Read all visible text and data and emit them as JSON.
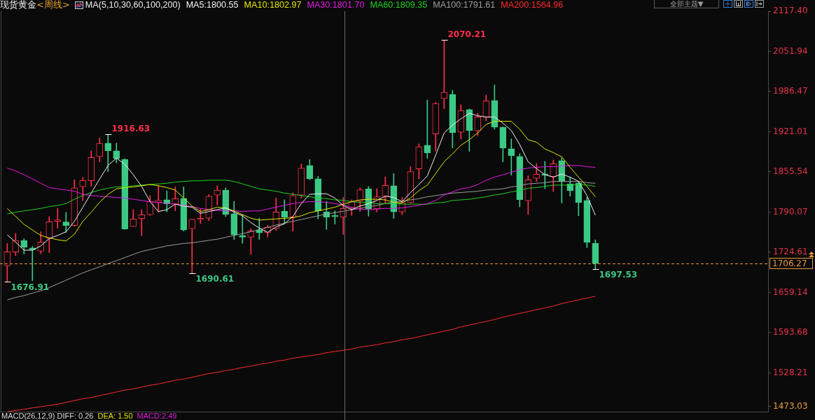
{
  "chart_data": {
    "type": "candlestick",
    "title": "现货黄金",
    "subtitle": "<周线>",
    "legend_title": "MA(5,10,30,60,100,200)",
    "legend": "top",
    "tick_labels": "y",
    "categories": [
      null,
      null,
      null,
      null,
      null,
      null,
      null,
      null,
      null,
      null,
      null,
      null,
      null,
      null,
      null,
      null,
      null,
      null,
      null,
      null,
      null,
      null,
      null,
      null,
      null,
      null,
      null,
      null,
      null,
      null,
      null,
      null,
      null,
      null,
      null,
      null,
      null,
      null,
      null,
      null,
      null,
      null,
      null,
      null,
      null,
      null,
      null,
      null,
      null,
      null,
      null,
      null,
      null,
      null,
      null,
      null,
      null,
      null,
      null,
      null,
      null,
      null,
      null,
      null,
      null,
      null,
      null,
      null,
      null,
      null,
      null
    ],
    "ohlc": [
      [
        1702.6,
        1739.1,
        1676.91,
        1725.4
      ],
      [
        1725.0,
        1755.4,
        1719.3,
        1744.0
      ],
      [
        1744.0,
        1746.7,
        1722.0,
        1732.6
      ],
      [
        1731.5,
        1734.1,
        1678.3,
        1728.8
      ],
      [
        1726.5,
        1758.1,
        1722.0,
        1741.4
      ],
      [
        1747.8,
        1782.7,
        1723.9,
        1774.4
      ],
      [
        1775.2,
        1796.0,
        1763.8,
        1776.3
      ],
      [
        1774.0,
        1789.6,
        1756.9,
        1768.3
      ],
      [
        1768.3,
        1842.7,
        1766.8,
        1829.5
      ],
      [
        1831.4,
        1846.5,
        1808.6,
        1841.6
      ],
      [
        1841.2,
        1889.8,
        1832.1,
        1879.2
      ],
      [
        1880.3,
        1910.7,
        1872.0,
        1902.0
      ],
      [
        1902.4,
        1916.63,
        1856.0,
        1890.2
      ],
      [
        1889.8,
        1902.4,
        1870.1,
        1876.9
      ],
      [
        1875.8,
        1876.9,
        1761.9,
        1762.6
      ],
      [
        1766.4,
        1794.1,
        1766.4,
        1778.9
      ],
      [
        1779.7,
        1794.1,
        1751.6,
        1785.8
      ],
      [
        1785.8,
        1816.9,
        1784.6,
        1807.4
      ],
      [
        1805.5,
        1833.2,
        1790.3,
        1809.3
      ],
      [
        1810.1,
        1824.5,
        1790.3,
        1803.6
      ],
      [
        1802.9,
        1831.3,
        1792.2,
        1812.0
      ],
      [
        1812.4,
        1831.3,
        1759.2,
        1760.7
      ],
      [
        1763.0,
        1778.9,
        1690.61,
        1778.2
      ],
      [
        1777.8,
        1795.3,
        1771.4,
        1778.9
      ],
      [
        1780.1,
        1818.8,
        1776.3,
        1815.8
      ],
      [
        1817.7,
        1832.9,
        1801.7,
        1825.7
      ],
      [
        1825.7,
        1829.5,
        1782.7,
        1786.5
      ],
      [
        1787.3,
        1807.4,
        1745.5,
        1753.1
      ],
      [
        1752.0,
        1785.8,
        1739.1,
        1749.3
      ],
      [
        1749.3,
        1763.0,
        1721.2,
        1759.6
      ],
      [
        1760.7,
        1780.1,
        1745.5,
        1756.2
      ],
      [
        1756.2,
        1768.3,
        1749.7,
        1765.3
      ],
      [
        1763.0,
        1813.1,
        1760.0,
        1790.3
      ],
      [
        1791.5,
        1810.1,
        1771.4,
        1782.0
      ],
      [
        1782.0,
        1821.5,
        1759.2,
        1816.9
      ],
      [
        1817.7,
        1868.2,
        1813.1,
        1861.7
      ],
      [
        1865.9,
        1875.8,
        1842.7,
        1844.6
      ],
      [
        1844.3,
        1848.4,
        1778.9,
        1792.2
      ],
      [
        1790.3,
        1807.4,
        1761.9,
        1782.0
      ],
      [
        1783.0,
        1792.2,
        1770.6,
        1782.5
      ],
      [
        1782.0,
        1813.9,
        1753.5,
        1796.0
      ],
      [
        1797.2,
        1810.1,
        1784.6,
        1806.7
      ],
      [
        1807.4,
        1829.5,
        1791.1,
        1826.4
      ],
      [
        1827.9,
        1831.7,
        1783.5,
        1795.3
      ],
      [
        1795.3,
        1828.3,
        1790.3,
        1815.0
      ],
      [
        1815.8,
        1847.3,
        1804.8,
        1833.6
      ],
      [
        1832.9,
        1853.0,
        1779.7,
        1790.3
      ],
      [
        1790.3,
        1814.3,
        1785.8,
        1805.5
      ],
      [
        1805.5,
        1864.4,
        1804.8,
        1856.0
      ],
      [
        1860.6,
        1901.2,
        1844.2,
        1896.3
      ],
      [
        1898.9,
        1972.6,
        1877.6,
        1886.4
      ],
      [
        1917.5,
        1968.8,
        1889.8,
        1966.9
      ],
      [
        1974.9,
        2070.21,
        1958.2,
        1985.1
      ],
      [
        1981.7,
        1988.5,
        1894.7,
        1919.4
      ],
      [
        1920.2,
        1965.0,
        1909.2,
        1955.5
      ],
      [
        1957.0,
        1958.2,
        1889.1,
        1923.2
      ],
      [
        1922.5,
        1950.9,
        1914.9,
        1945.2
      ],
      [
        1944.1,
        1980.9,
        1939.2,
        1971.4
      ],
      [
        1971.8,
        1997.3,
        1925.1,
        1928.5
      ],
      [
        1928.2,
        1928.9,
        1872.0,
        1894.4
      ],
      [
        1893.2,
        1909.2,
        1850.3,
        1882.2
      ],
      [
        1880.7,
        1885.3,
        1798.7,
        1810.5
      ],
      [
        1808.6,
        1849.2,
        1786.5,
        1842.7
      ],
      [
        1845.0,
        1869.3,
        1839.7,
        1851.8
      ],
      [
        1850.5,
        1872.7,
        1828.3,
        1850.1
      ],
      [
        1848.0,
        1875.0,
        1823.7,
        1868.9
      ],
      [
        1873.9,
        1878.4,
        1804.8,
        1839.7
      ],
      [
        1835.9,
        1847.3,
        1816.1,
        1825.3
      ],
      [
        1837.4,
        1838.9,
        1784.2,
        1805.5
      ],
      [
        1808.9,
        1813.9,
        1732.2,
        1741.0
      ],
      [
        1739.4,
        1744.8,
        1697.53,
        1706.27
      ]
    ],
    "colors": [
      "#ff3048",
      "#ff3048",
      "#3cc986",
      "#3cc986",
      "#ff3048",
      "#ff3048",
      "#ff3048",
      "#3cc986",
      "#ff3048",
      "#ff3048",
      "#ff3048",
      "#ff3048",
      "#3cc986",
      "#3cc986",
      "#3cc986",
      "#ff3048",
      "#ff3048",
      "#ff3048",
      "#ff3048",
      "#3cc986",
      "#ff3048",
      "#3cc986",
      "#ff3048",
      "#ff3048",
      "#ff3048",
      "#ff3048",
      "#3cc986",
      "#3cc986",
      "#3cc986",
      "#ff3048",
      "#3cc986",
      "#ff3048",
      "#ff3048",
      "#3cc986",
      "#ff3048",
      "#ff3048",
      "#3cc986",
      "#3cc986",
      "#3cc986",
      "#3cc986",
      "#ff3048",
      "#ff3048",
      "#ff3048",
      "#3cc986",
      "#ff3048",
      "#ff3048",
      "#3cc986",
      "#ff3048",
      "#ff3048",
      "#ff3048",
      "#3cc986",
      "#ff3048",
      "#ff3048",
      "#3cc986",
      "#ff3048",
      "#3cc986",
      "#ff3048",
      "#ff3048",
      "#3cc986",
      "#3cc986",
      "#3cc986",
      "#3cc986",
      "#ff3048",
      "#ff3048",
      "#3cc986",
      "#ff3048",
      "#3cc986",
      "#3cc986",
      "#3cc986",
      "#3cc986",
      "#3cc986"
    ],
    "series": [
      {
        "name": "MA5:1800.55",
        "type": "line",
        "color": "#f0f0f0",
        "values": [
          1753,
          1741,
          1728,
          1728,
          1735,
          1747,
          1752,
          1758,
          1775,
          1798,
          1821,
          1844,
          1866,
          1878,
          1868,
          1851,
          1832,
          1807,
          1791,
          1794,
          1803,
          1800,
          1798,
          1788,
          1791,
          1794,
          1797,
          1790,
          1784,
          1773,
          1764,
          1757,
          1766,
          1771,
          1783,
          1804,
          1819,
          1820,
          1820,
          1813,
          1800.55,
          1794,
          1800,
          1804,
          1809,
          1816,
          1814,
          1807,
          1822,
          1835,
          1849,
          1883,
          1919,
          1932,
          1942,
          1951,
          1947,
          1945,
          1945,
          1935,
          1923,
          1900,
          1872,
          1861,
          1851,
          1847,
          1852,
          1847,
          1840,
          1817,
          1785
        ]
      },
      {
        "name": "MA10:1802.97",
        "type": "line",
        "color": "#e6e600",
        "values": [
          1796,
          1783,
          1770,
          1761,
          1752,
          1748,
          1745,
          1743,
          1754,
          1775,
          1790,
          1806,
          1819,
          1828,
          1830,
          1831,
          1833,
          1835,
          1833,
          1830,
          1826,
          1813,
          1800,
          1791,
          1794,
          1798,
          1797,
          1792,
          1786,
          1780,
          1777,
          1778,
          1779,
          1780,
          1781,
          1784,
          1789,
          1792,
          1795,
          1798,
          1802.97,
          1807,
          1810,
          1811,
          1811,
          1810,
          1806,
          1805,
          1813,
          1825,
          1834,
          1853,
          1872,
          1885,
          1899,
          1908,
          1919,
          1933,
          1938,
          1938,
          1938,
          1925,
          1908,
          1904,
          1893,
          1887,
          1880,
          1863,
          1847,
          1832,
          1815
        ]
      },
      {
        "name": "MA30:1801.70",
        "type": "line",
        "color": "#e619e6",
        "values": [
          1862,
          1857,
          1851,
          1844,
          1837,
          1830,
          1828,
          1826,
          1824,
          1819,
          1817,
          1816,
          1815,
          1814,
          1813,
          1811,
          1809,
          1807,
          1806,
          1804,
          1803,
          1801,
          1799,
          1796,
          1794,
          1793,
          1792,
          1792,
          1791,
          1792,
          1792,
          1795,
          1798,
          1801,
          1804,
          1806,
          1807,
          1807,
          1806,
          1804,
          1801.7,
          1797,
          1795,
          1794,
          1795,
          1796,
          1796,
          1797,
          1799,
          1801,
          1804,
          1809,
          1818,
          1823,
          1828,
          1830,
          1835,
          1842,
          1847,
          1851,
          1855,
          1859,
          1862,
          1863,
          1864,
          1864,
          1865,
          1866,
          1866,
          1864,
          1863
        ]
      },
      {
        "name": "MA60:1809.35",
        "type": "line",
        "color": "#1ed21e",
        "values": [
          1787,
          1790,
          1792,
          1794,
          1796,
          1799,
          1801,
          1804,
          1811,
          1817,
          1822,
          1826,
          1829,
          1831,
          1831,
          1833,
          1834,
          1835,
          1836,
          1837,
          1839,
          1840,
          1841,
          1841,
          1842,
          1842,
          1842,
          1840,
          1836,
          1832,
          1828,
          1826,
          1824,
          1821,
          1819,
          1817,
          1815,
          1813,
          1812,
          1810,
          1809.35,
          1807,
          1806,
          1805,
          1804,
          1804,
          1804,
          1803,
          1803,
          1803,
          1803,
          1805,
          1806,
          1809,
          1810,
          1811,
          1813,
          1815,
          1818,
          1820,
          1823,
          1825,
          1829,
          1830,
          1832,
          1834,
          1834,
          1834,
          1835,
          1834,
          1832
        ]
      },
      {
        "name": "MA100:1791.61",
        "type": "line",
        "color": "#9c9c9c",
        "values": [
          1647,
          1651,
          1654,
          1658,
          1662,
          1667,
          1673,
          1679,
          1685,
          1691,
          1696,
          1701,
          1706,
          1711,
          1716,
          1721,
          1726,
          1729,
          1732,
          1735,
          1737,
          1739,
          1740,
          1742,
          1744,
          1746,
          1749,
          1752,
          1755,
          1758,
          1762,
          1765,
          1769,
          1772,
          1775,
          1778,
          1781,
          1784,
          1787,
          1789,
          1791.61,
          1794,
          1796,
          1799,
          1801,
          1804,
          1806,
          1808,
          1810,
          1812,
          1815,
          1817,
          1819,
          1821,
          1822,
          1823,
          1824,
          1826,
          1827,
          1828,
          1831,
          1833,
          1836,
          1837,
          1838,
          1840,
          1840,
          1840,
          1840,
          1838,
          1837
        ]
      },
      {
        "name": "MA200:1564.96",
        "type": "line",
        "color": "#ff2a2a",
        "values": [
          1465,
          1467,
          1469,
          1471,
          1473,
          1475,
          1477,
          1480,
          1483,
          1486,
          1488,
          1491,
          1494,
          1497,
          1500,
          1502,
          1505,
          1508,
          1510,
          1513,
          1516,
          1518,
          1521,
          1524,
          1527,
          1529,
          1532,
          1534,
          1537,
          1539,
          1542,
          1544,
          1547,
          1549,
          1552,
          1554,
          1556,
          1558,
          1561,
          1563,
          1564.96,
          1567,
          1570,
          1572,
          1574,
          1577,
          1579,
          1582,
          1584,
          1587,
          1590,
          1593,
          1596,
          1599,
          1603,
          1606,
          1609,
          1612,
          1615,
          1619,
          1622,
          1625,
          1628,
          1631,
          1634,
          1637,
          1641,
          1644,
          1647,
          1650,
          1653
        ]
      }
    ],
    "ylim": [
      1465,
      2117.4
    ],
    "yticks": [
      1473.03,
      1528.21,
      1593.68,
      1659.14,
      1724.61,
      1790.07,
      1855.54,
      1921.01,
      1986.47,
      2051.94,
      {
        "value": 2117.4,
        "label": "2117.40"
      }
    ],
    "ref_lines": [
      {
        "axis": "y",
        "value": 1706.27,
        "color": "#e89a3c",
        "line_style": "dashed"
      }
    ],
    "annotations": [
      "1916.63",
      "2070.21",
      "1676.91",
      "1690.61",
      "1697.53",
      "全部主题▼",
      "MACD(26,12,9) DIFF: 0.26",
      "DEA: 1.50",
      "MACD:2.49",
      "1706.27"
    ]
  }
}
